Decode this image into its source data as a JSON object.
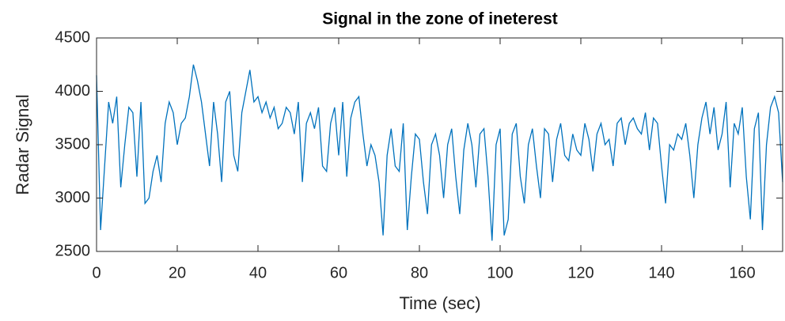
{
  "chart_data": {
    "type": "line",
    "title": "Signal in the zone of ineterest",
    "xlabel": "Time (sec)",
    "ylabel": "Radar Signal",
    "xlim": [
      0,
      170
    ],
    "ylim": [
      2500,
      4500
    ],
    "xticks": [
      0,
      20,
      40,
      60,
      80,
      100,
      120,
      140,
      160
    ],
    "yticks": [
      2500,
      3000,
      3500,
      4000,
      4500
    ],
    "grid": false,
    "series": [
      {
        "color": "#0072bd",
        "x": [
          0,
          1,
          2,
          3,
          4,
          5,
          6,
          7,
          8,
          9,
          10,
          11,
          12,
          13,
          14,
          15,
          16,
          17,
          18,
          19,
          20,
          21,
          22,
          23,
          24,
          25,
          26,
          27,
          28,
          29,
          30,
          31,
          32,
          33,
          34,
          35,
          36,
          37,
          38,
          39,
          40,
          41,
          42,
          43,
          44,
          45,
          46,
          47,
          48,
          49,
          50,
          51,
          52,
          53,
          54,
          55,
          56,
          57,
          58,
          59,
          60,
          61,
          62,
          63,
          64,
          65,
          66,
          67,
          68,
          69,
          70,
          71,
          72,
          73,
          74,
          75,
          76,
          77,
          78,
          79,
          80,
          81,
          82,
          83,
          84,
          85,
          86,
          87,
          88,
          89,
          90,
          91,
          92,
          93,
          94,
          95,
          96,
          97,
          98,
          99,
          100,
          101,
          102,
          103,
          104,
          105,
          106,
          107,
          108,
          109,
          110,
          111,
          112,
          113,
          114,
          115,
          116,
          117,
          118,
          119,
          120,
          121,
          122,
          123,
          124,
          125,
          126,
          127,
          128,
          129,
          130,
          131,
          132,
          133,
          134,
          135,
          136,
          137,
          138,
          139,
          140,
          141,
          142,
          143,
          144,
          145,
          146,
          147,
          148,
          149,
          150,
          151,
          152,
          153,
          154,
          155,
          156,
          157,
          158,
          159,
          160,
          161,
          162,
          163,
          164,
          165,
          166,
          167,
          168,
          169,
          170
        ],
        "values": [
          4150,
          2700,
          3300,
          3900,
          3700,
          3950,
          3100,
          3500,
          3850,
          3800,
          3200,
          3900,
          2950,
          3000,
          3250,
          3400,
          3150,
          3700,
          3900,
          3800,
          3500,
          3700,
          3750,
          3950,
          4250,
          4100,
          3900,
          3600,
          3300,
          3900,
          3600,
          3150,
          3900,
          4000,
          3400,
          3250,
          3800,
          4000,
          4200,
          3900,
          3950,
          3800,
          3900,
          3750,
          3850,
          3650,
          3700,
          3850,
          3800,
          3600,
          3900,
          3150,
          3700,
          3800,
          3650,
          3850,
          3300,
          3250,
          3700,
          3850,
          3400,
          3900,
          3200,
          3750,
          3900,
          3950,
          3600,
          3300,
          3500,
          3400,
          3150,
          2650,
          3400,
          3650,
          3300,
          3250,
          3700,
          2700,
          3200,
          3600,
          3550,
          3150,
          2850,
          3500,
          3600,
          3400,
          3000,
          3500,
          3650,
          3200,
          2850,
          3450,
          3700,
          3500,
          3100,
          3600,
          3650,
          3200,
          2600,
          3500,
          3650,
          2650,
          2800,
          3600,
          3700,
          3200,
          2950,
          3500,
          3650,
          3300,
          3000,
          3650,
          3600,
          3150,
          3550,
          3700,
          3400,
          3350,
          3600,
          3450,
          3400,
          3700,
          3550,
          3250,
          3600,
          3700,
          3500,
          3550,
          3300,
          3700,
          3750,
          3500,
          3700,
          3750,
          3650,
          3600,
          3800,
          3450,
          3750,
          3700,
          3300,
          2950,
          3500,
          3450,
          3600,
          3550,
          3700,
          3400,
          3000,
          3500,
          3750,
          3900,
          3600,
          3850,
          3450,
          3600,
          3900,
          3100,
          3700,
          3600,
          3850,
          3200,
          2800,
          3650,
          3800,
          2700,
          3500,
          3850,
          3950,
          3800,
          3150
        ]
      }
    ]
  }
}
